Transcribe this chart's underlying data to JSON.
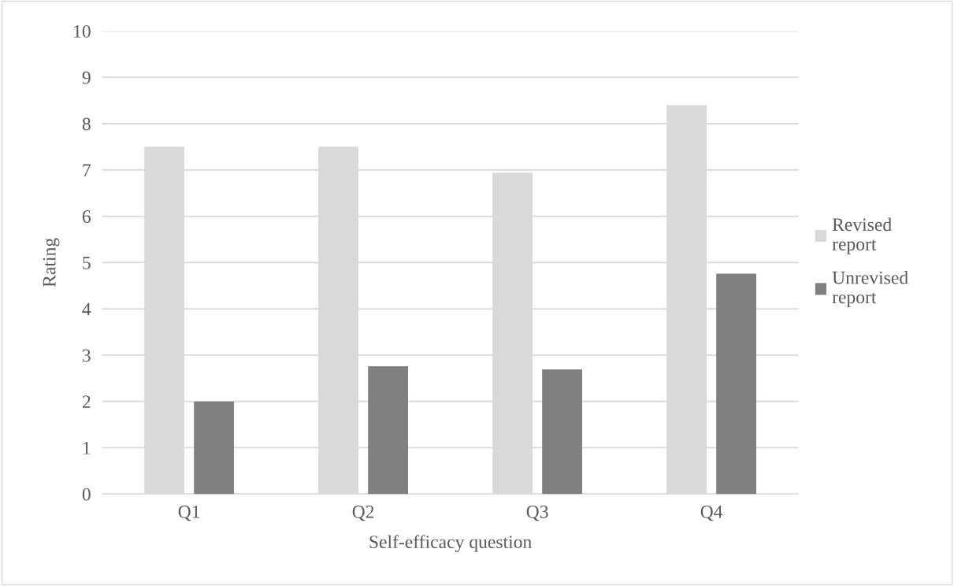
{
  "chart_data": {
    "type": "bar",
    "xlabel": "Self-efficacy question",
    "ylabel": "Rating",
    "categories": [
      "Q1",
      "Q2",
      "Q3",
      "Q4"
    ],
    "series": [
      {
        "name": "Revised report",
        "color": "#d9d9d9",
        "values": [
          7.5,
          7.5,
          6.94,
          8.4
        ]
      },
      {
        "name": "Unrevised report",
        "color": "#808080",
        "values": [
          2.0,
          2.76,
          2.69,
          4.76
        ]
      }
    ],
    "ylim": [
      0,
      10
    ],
    "yticks": [
      0,
      1,
      2,
      3,
      4,
      5,
      6,
      7,
      8,
      9,
      10
    ],
    "grid": "y",
    "legend": "right"
  }
}
